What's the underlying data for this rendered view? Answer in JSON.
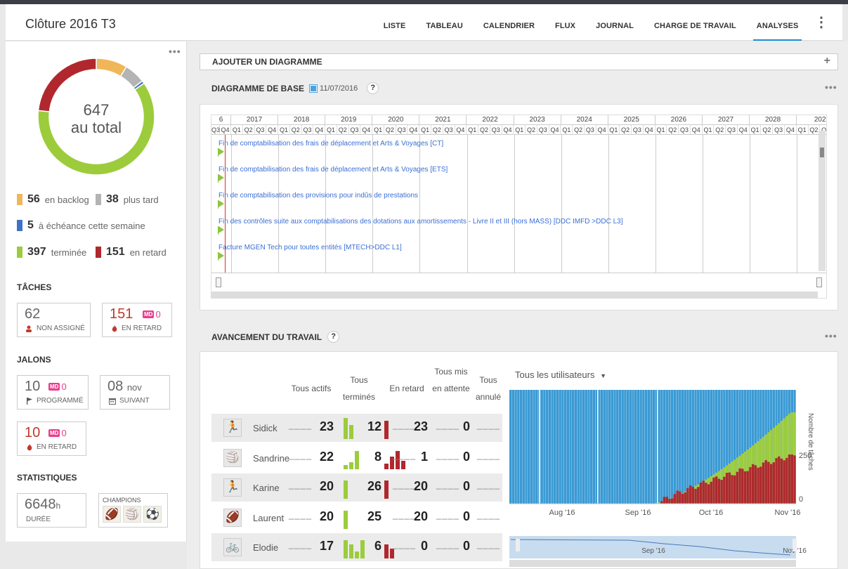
{
  "header": {
    "title": "Clôture 2016 T3",
    "tabs": [
      "LISTE",
      "TABLEAU",
      "CALENDRIER",
      "FLUX",
      "JOURNAL",
      "CHARGE DE TRAVAIL",
      "ANALYSES"
    ],
    "active_tab": "ANALYSES"
  },
  "summary": {
    "total_num": "647",
    "total_label": "au total",
    "legend": [
      {
        "value": "56",
        "label": "en backlog",
        "color": "#f0b65a"
      },
      {
        "value": "38",
        "label": "plus tard",
        "color": "#b4b4b4"
      },
      {
        "value": "5",
        "label": "à échéance cette semaine",
        "color": "#3d72c8"
      },
      {
        "value": "397",
        "label": "terminée",
        "color": "#9ccc3c"
      },
      {
        "value": "151",
        "label": "en retard",
        "color": "#b0282d"
      }
    ]
  },
  "taches": {
    "title": "TÂCHES",
    "unassigned_value": "62",
    "unassigned_label": "NON ASSIGNÉ",
    "late_value": "151",
    "late_md": "MD",
    "late_md_value": "0",
    "late_label": "EN RETARD"
  },
  "jalons": {
    "title": "JALONS",
    "planned_value": "10",
    "planned_md": "MD",
    "planned_md_value": "0",
    "planned_label": "PROGRAMMÉ",
    "next_value": "08",
    "next_month": "nov",
    "next_label": "SUIVANT",
    "late_value": "10",
    "late_md": "MD",
    "late_md_value": "0",
    "late_label": "EN RETARD"
  },
  "stats": {
    "title": "STATISTIQUES",
    "duration_value": "6648",
    "duration_unit": "h",
    "duration_label": "DURÉE",
    "champions_label": "CHAMPIONS"
  },
  "add_chart": {
    "label": "AJOUTER UN DIAGRAMME"
  },
  "gantt": {
    "title": "DIAGRAMME DE BASE",
    "date": "11/07/2016",
    "help": "?",
    "years": [
      "6",
      "2017",
      "2018",
      "2019",
      "2020",
      "2021",
      "2022",
      "2023",
      "2024",
      "2025",
      "2026",
      "2027",
      "2028",
      "202"
    ],
    "quarters": [
      "Q1",
      "Q2",
      "Q3",
      "Q4"
    ],
    "tasks": [
      "Fin de comptabilisation des frais de déplacement et Arts & Voyages [CT]",
      "Fin de comptabilisation des frais de déplacement et Arts & Voyages [ETS]",
      "Fin de comptabilisation des provisions pour indûs de prestations",
      "Fin des contrôles suite aux comptabilisations des dotations aux amortissements - Livre II et III (hors MASS) [DDC IMFD >DDC L3]",
      "Facture MGEN Tech pour toutes entités [MTECH>DDC L1]"
    ]
  },
  "progress": {
    "title": "AVANCEMENT DU TRAVAIL",
    "help": "?",
    "columns": [
      "Tous actifs",
      "Tous terminés",
      "En retard",
      "Tous mis en attente",
      "Tous annulé"
    ],
    "dashes": "____",
    "rows": [
      {
        "name": "Sidick",
        "actifs": "23",
        "termines": "12",
        "retard": "23",
        "attente": "0"
      },
      {
        "name": "Sandrine",
        "actifs": "22",
        "termines": "8",
        "retard": "1",
        "attente": "0"
      },
      {
        "name": "Karine",
        "actifs": "20",
        "termines": "26",
        "retard": "20",
        "attente": "0"
      },
      {
        "name": "Laurent",
        "actifs": "20",
        "termines": "25",
        "retard": "20",
        "attente": "0"
      },
      {
        "name": "Elodie",
        "actifs": "17",
        "termines": "6",
        "retard": "0",
        "attente": "0"
      }
    ]
  },
  "users_filter": {
    "label": "Tous les utilisateurs"
  },
  "chart_data": {
    "type": "area",
    "title": "",
    "ylabel": "Nombre de tâches",
    "x_ticks": [
      "Aug '16",
      "Sep '16",
      "Oct '16",
      "Nov '16"
    ],
    "y_ticks": [
      "250",
      "0"
    ],
    "navigator_label": "Sep '16",
    "navigator_right_label": "Nov '16",
    "series": [
      {
        "name": "",
        "color": "#3a9ad4",
        "values": []
      },
      {
        "name": "",
        "color": "#9ccc3c",
        "values": []
      },
      {
        "name": "",
        "color": "#b0282d",
        "values": []
      }
    ]
  }
}
